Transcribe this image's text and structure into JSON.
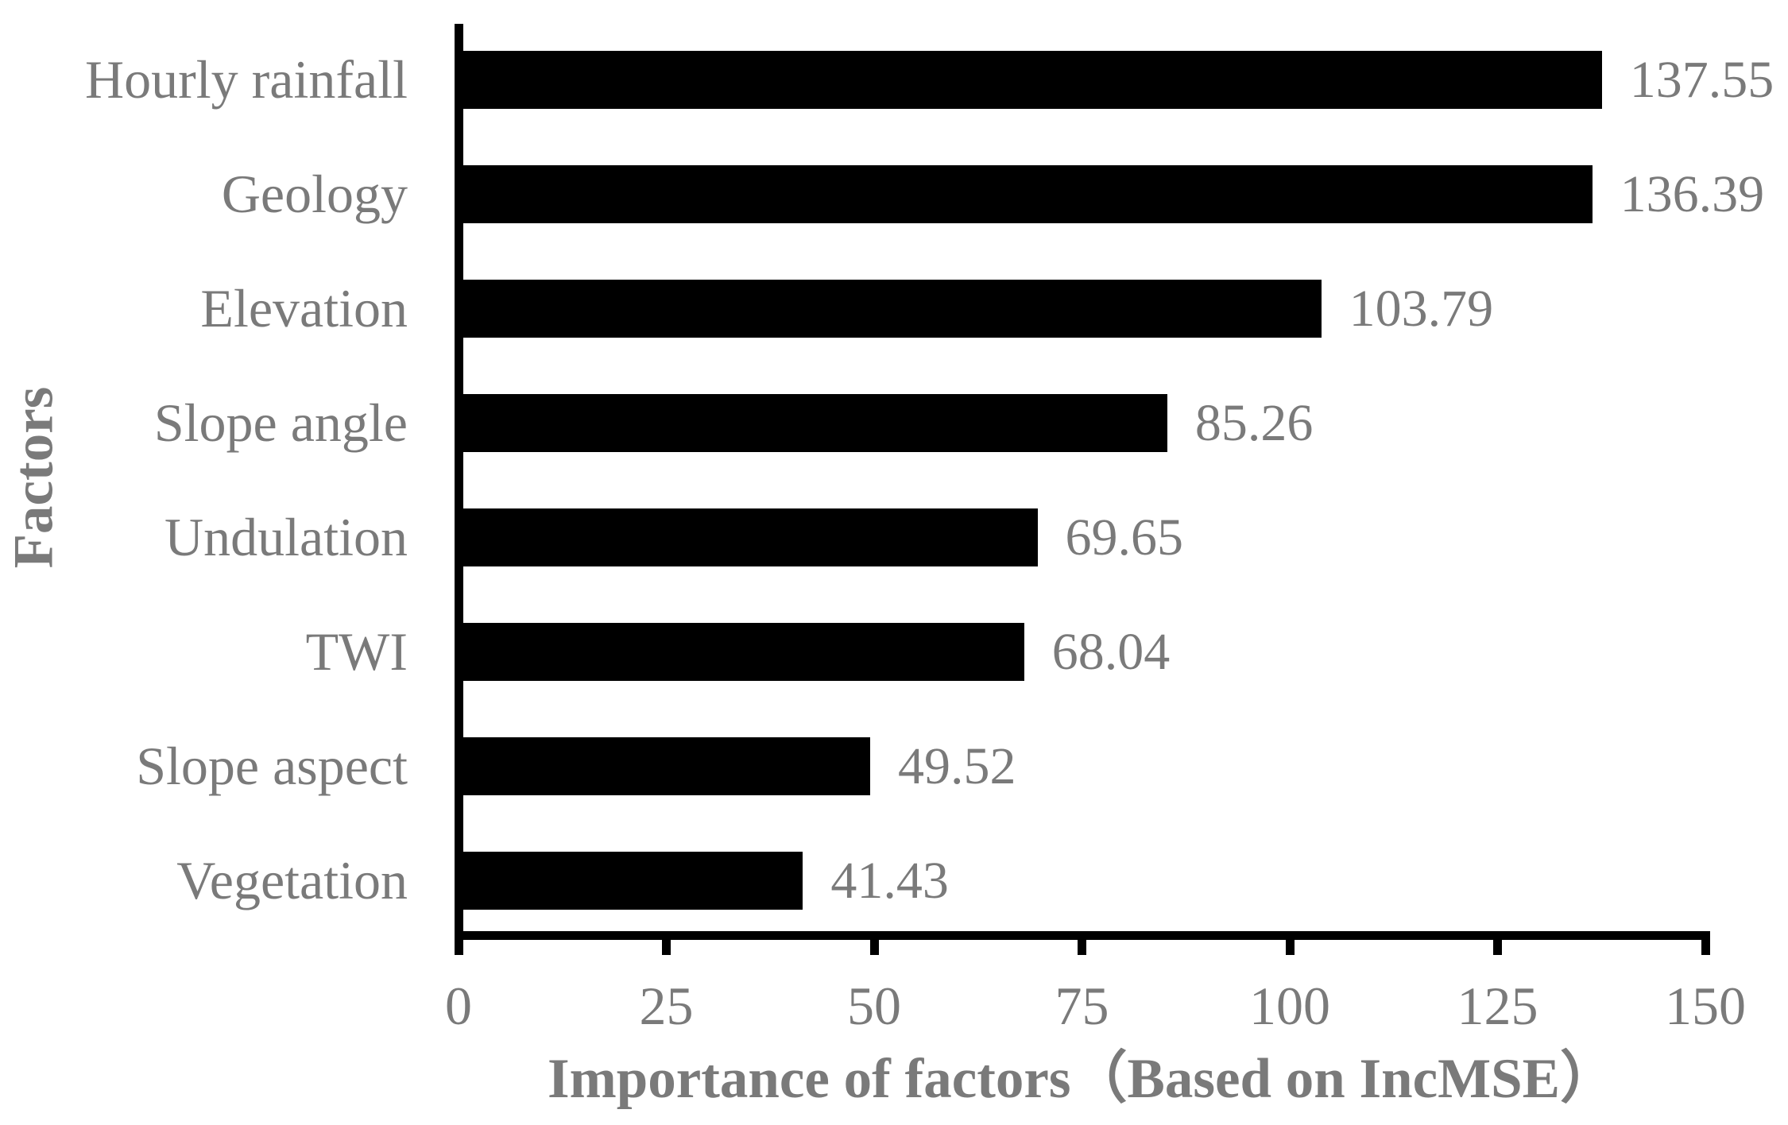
{
  "chart_data": {
    "type": "bar",
    "orientation": "horizontal",
    "title": "",
    "xlabel": "Importance of factors（Based on IncMSE）",
    "ylabel": "Factors",
    "categories": [
      "Hourly rainfall",
      "Geology",
      "Elevation",
      "Slope angle",
      "Undulation",
      "TWI",
      "Slope aspect",
      "Vegetation"
    ],
    "values": [
      137.55,
      136.39,
      103.79,
      85.26,
      69.65,
      68.04,
      49.52,
      41.43
    ],
    "value_labels": [
      "137.55",
      "136.39",
      "103.79",
      "85.26",
      "69.65",
      "68.04",
      "49.52",
      "41.43"
    ],
    "xlim": [
      0,
      150
    ],
    "xticks": [
      "0",
      "25",
      "50",
      "75",
      "100",
      "125",
      "150"
    ],
    "grid": false,
    "legend": null,
    "bar_color": "#000000",
    "axis_color": "#000000",
    "label_color": "#7a7a7a"
  }
}
